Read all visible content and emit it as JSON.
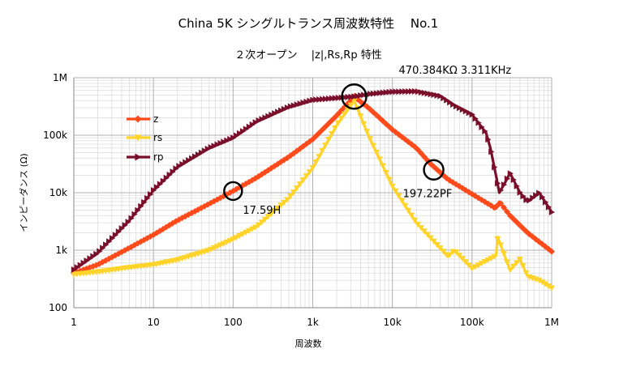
{
  "chart_data": {
    "type": "line",
    "title": "China 5K シングルトランス周波数特性　 No.1",
    "subtitle": "２次オープン　 |z|,Rs,Rp 特性",
    "xlabel": "周波数",
    "ylabel": "インピーダンス (Ω)",
    "xscale": "log",
    "yscale": "log",
    "xlim": [
      1,
      1000000
    ],
    "ylim": [
      100,
      1000000
    ],
    "x_ticks": [
      1,
      10,
      100,
      1000,
      10000,
      100000,
      1000000
    ],
    "x_tick_labels": [
      "1",
      "10",
      "100",
      "1k",
      "10k",
      "100k",
      "1M"
    ],
    "y_ticks": [
      100,
      1000,
      10000,
      100000,
      1000000
    ],
    "y_tick_labels": [
      "100",
      "1k",
      "10k",
      "100k",
      "1M"
    ],
    "grid": true,
    "legend_position": "upper-left",
    "series": [
      {
        "name": "z",
        "color": "#ff4a1c",
        "marker": "diamond",
        "x": [
          1,
          2,
          5,
          10,
          20,
          50,
          100,
          200,
          500,
          1000,
          2000,
          3311,
          5000,
          10000,
          20000,
          30000,
          50000,
          100000,
          200000,
          220000,
          300000,
          500000,
          1000000
        ],
        "y": [
          400,
          560,
          1100,
          1850,
          3300,
          6400,
          10700,
          18500,
          42000,
          85000,
          220000,
          470000,
          300000,
          125000,
          60000,
          32000,
          17000,
          9500,
          5300,
          7000,
          4000,
          2000,
          950
        ]
      },
      {
        "name": "rs",
        "color": "#ffd42a",
        "marker": "triangle-down",
        "x": [
          1,
          2,
          5,
          10,
          20,
          50,
          100,
          200,
          500,
          1000,
          2000,
          3311,
          5000,
          10000,
          20000,
          50000,
          60000,
          100000,
          200000,
          210000,
          300000,
          400000,
          500000,
          700000,
          1000000
        ],
        "y": [
          380,
          420,
          500,
          560,
          680,
          1000,
          1550,
          2600,
          8000,
          27000,
          150000,
          400000,
          100000,
          13000,
          3000,
          780,
          1000,
          480,
          800,
          1700,
          450,
          700,
          350,
          300,
          220
        ]
      },
      {
        "name": "rp",
        "color": "#7a0f2b",
        "marker": "triangle-right",
        "x": [
          1,
          2,
          5,
          10,
          20,
          50,
          100,
          200,
          500,
          1000,
          3311,
          5000,
          10000,
          20000,
          40000,
          60000,
          100000,
          150000,
          170000,
          200000,
          220000,
          260000,
          300000,
          400000,
          500000,
          700000,
          1000000
        ],
        "y": [
          460,
          900,
          3300,
          11000,
          28000,
          60000,
          90000,
          175000,
          310000,
          410000,
          470000,
          520000,
          570000,
          580000,
          480000,
          330000,
          230000,
          110000,
          60000,
          20000,
          10000,
          15000,
          22000,
          10000,
          7000,
          10000,
          4600
        ]
      }
    ],
    "annotations": [
      {
        "label": "470.384KΩ 3.311KHz",
        "x": 3311,
        "y": 470384,
        "circled": true
      },
      {
        "label": "17.59H",
        "x": 100,
        "y": 10700,
        "circled": true
      },
      {
        "label": "197.22PF",
        "x": 33000,
        "y": 25000,
        "circled": true
      }
    ]
  }
}
